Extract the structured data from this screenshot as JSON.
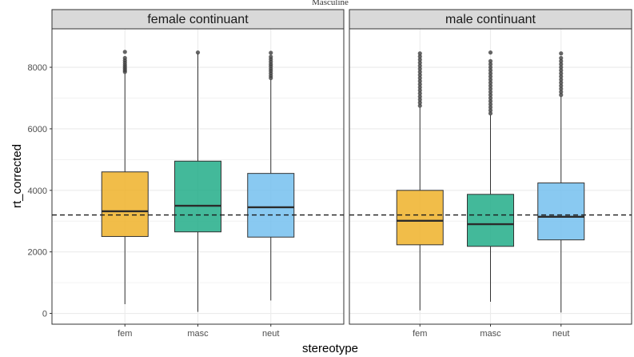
{
  "top_text": "Masculine",
  "colors": {
    "fem": "#efb129",
    "masc": "#22ad88",
    "neut": "#74bfee",
    "panel_border": "#333333",
    "strip_fill": "#d9d9d9",
    "grid": "#ebebeb",
    "whisker": "#333333",
    "median": "#2b2b2b",
    "outlier": "#404040",
    "ref_line": "#1a1a1a"
  },
  "chart_data": {
    "type": "boxplot",
    "xlabel": "stereotype",
    "ylabel": "rt_corrected",
    "ylim": [
      -350,
      9250
    ],
    "yticks": [
      0,
      2000,
      4000,
      6000,
      8000
    ],
    "categories": [
      "fem",
      "masc",
      "neut"
    ],
    "reference_line": {
      "y": 3200,
      "style": "dashed"
    },
    "grid": true,
    "facets": [
      {
        "label": "female continuant",
        "boxes": [
          {
            "category": "fem",
            "min": 300,
            "q1": 2500,
            "median": 3320,
            "q3": 4600,
            "max": 7800,
            "outliers": [
              7850,
              7900,
              7960,
              8020,
              8080,
              8150,
              8220,
              8300,
              8500
            ]
          },
          {
            "category": "masc",
            "min": 50,
            "q1": 2650,
            "median": 3500,
            "q3": 4950,
            "max": 8450,
            "outliers": [
              8480
            ]
          },
          {
            "category": "neut",
            "min": 420,
            "q1": 2480,
            "median": 3450,
            "q3": 4550,
            "max": 7600,
            "outliers": [
              7650,
              7720,
              7800,
              7880,
              7950,
              8030,
              8100,
              8180,
              8260,
              8340,
              8470
            ]
          }
        ]
      },
      {
        "label": "male continuant",
        "boxes": [
          {
            "category": "fem",
            "min": 100,
            "q1": 2230,
            "median": 3010,
            "q3": 4000,
            "max": 6700,
            "outliers": [
              6750,
              6850,
              6950,
              7050,
              7150,
              7250,
              7350,
              7450,
              7550,
              7650,
              7750,
              7850,
              7950,
              8050,
              8150,
              8250,
              8350,
              8450
            ]
          },
          {
            "category": "masc",
            "min": 380,
            "q1": 2180,
            "median": 2900,
            "q3": 3870,
            "max": 6450,
            "outliers": [
              6500,
              6600,
              6700,
              6800,
              6900,
              7000,
              7100,
              7200,
              7300,
              7400,
              7500,
              7600,
              7700,
              7800,
              7900,
              8000,
              8100,
              8200,
              8480
            ]
          },
          {
            "category": "neut",
            "min": 30,
            "q1": 2390,
            "median": 3140,
            "q3": 4240,
            "max": 7050,
            "outliers": [
              7100,
              7200,
              7300,
              7400,
              7500,
              7600,
              7700,
              7800,
              7900,
              8000,
              8100,
              8200,
              8300,
              8450
            ]
          }
        ]
      }
    ]
  }
}
